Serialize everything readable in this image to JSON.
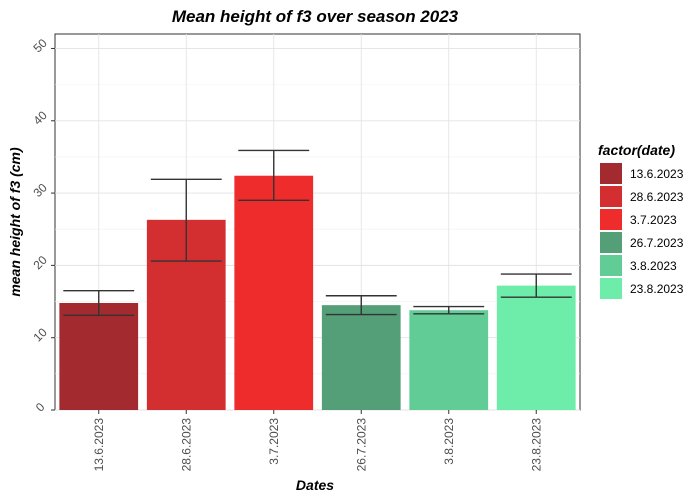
{
  "chart_data": {
    "type": "bar",
    "title": "Mean height of f3 over season 2023",
    "xlabel": "Dates",
    "ylabel": "mean height of f3 (cm)",
    "ylim": [
      0,
      52
    ],
    "yticks": [
      0,
      10,
      20,
      30,
      40,
      50
    ],
    "grid": true,
    "legend_position": "right",
    "legend_title": "factor(date)",
    "categories": [
      "13.6.2023",
      "28.6.2023",
      "3.7.2023",
      "26.7.2023",
      "3.8.2023",
      "23.8.2023"
    ],
    "values": [
      14.8,
      26.3,
      32.4,
      14.5,
      13.8,
      17.2
    ],
    "error_low": [
      13.1,
      20.6,
      29.0,
      13.2,
      13.3,
      15.6
    ],
    "error_high": [
      16.5,
      31.9,
      35.9,
      15.8,
      14.3,
      18.8
    ],
    "colors": [
      "#a32a2f",
      "#d42f30",
      "#ee2c2c",
      "#549e78",
      "#61cc96",
      "#6eeca9"
    ]
  }
}
